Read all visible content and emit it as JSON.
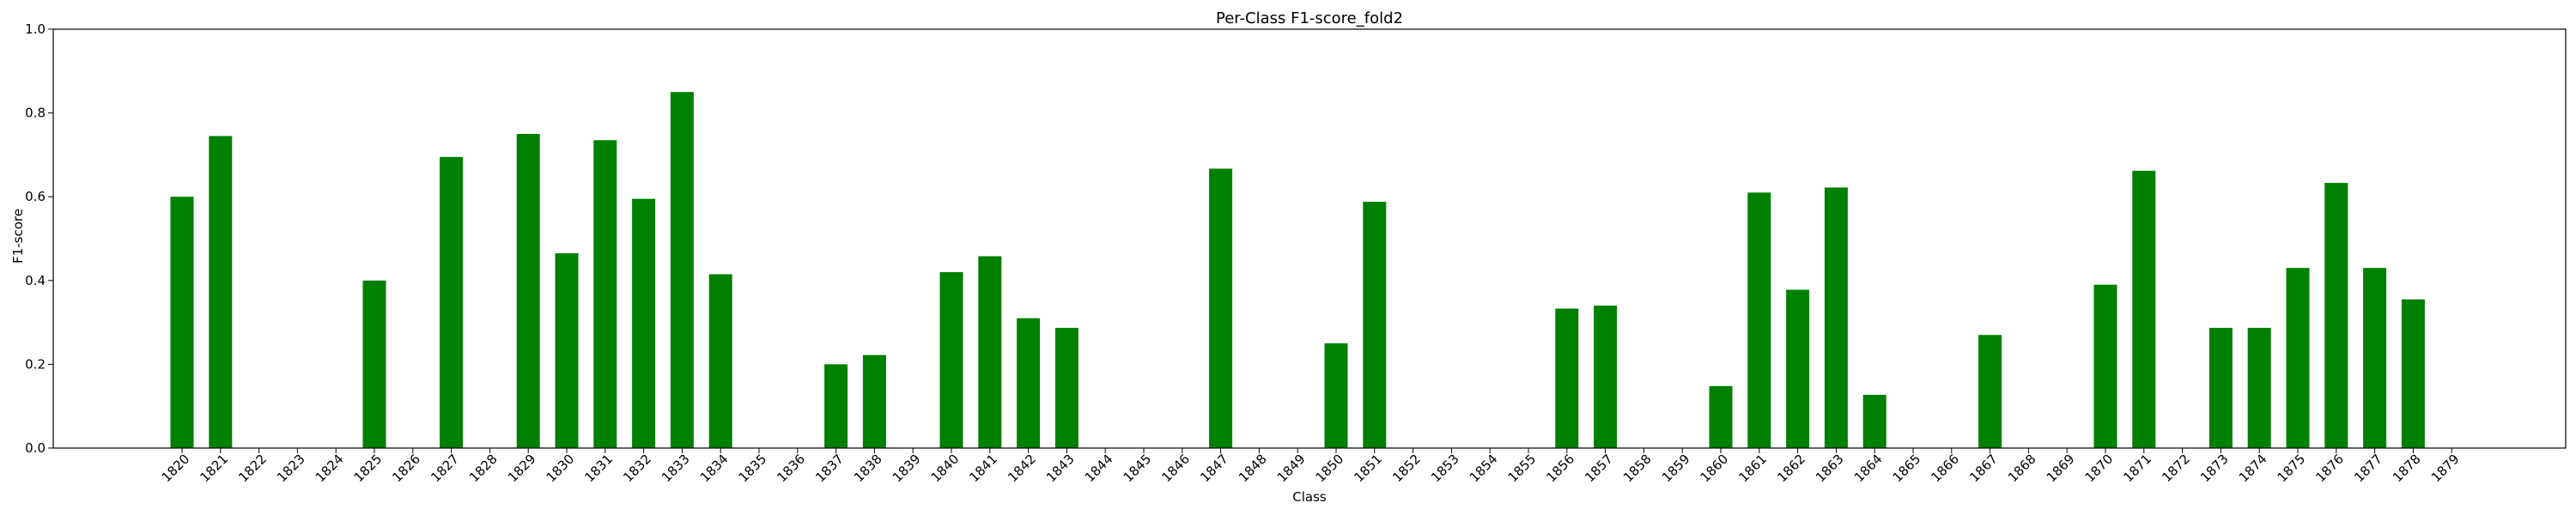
{
  "chart_data": {
    "type": "bar",
    "title": "Per-Class F1-score_fold2",
    "xlabel": "Class",
    "ylabel": "F1-score",
    "ylim": [
      0,
      1.0
    ],
    "yticks": [
      "0.0",
      "0.2",
      "0.4",
      "0.6",
      "0.8",
      "1.0"
    ],
    "grid": false,
    "bar_color": "#008000",
    "categories": [
      "1820",
      "1821",
      "1822",
      "1823",
      "1824",
      "1825",
      "1826",
      "1827",
      "1828",
      "1829",
      "1830",
      "1831",
      "1832",
      "1833",
      "1834",
      "1835",
      "1836",
      "1837",
      "1838",
      "1839",
      "1840",
      "1841",
      "1842",
      "1843",
      "1844",
      "1845",
      "1846",
      "1847",
      "1848",
      "1849",
      "1850",
      "1851",
      "1852",
      "1853",
      "1854",
      "1855",
      "1856",
      "1857",
      "1858",
      "1859",
      "1860",
      "1861",
      "1862",
      "1863",
      "1864",
      "1865",
      "1866",
      "1867",
      "1868",
      "1869",
      "1870",
      "1871",
      "1872",
      "1873",
      "1874",
      "1875",
      "1876",
      "1877",
      "1878",
      "1879"
    ],
    "values": [
      0.6,
      0.745,
      0,
      0,
      0,
      0.4,
      0,
      0.695,
      0,
      0.75,
      0.465,
      0.735,
      0.595,
      0.85,
      0.415,
      0,
      0,
      0.2,
      0.222,
      0,
      0.42,
      0.458,
      0.31,
      0.287,
      0,
      0,
      0,
      0.667,
      0,
      0,
      0.25,
      0.588,
      0,
      0,
      0,
      0,
      0.333,
      0.34,
      0,
      0,
      0.148,
      0.61,
      0.378,
      0.622,
      0.127,
      0,
      0,
      0.27,
      0,
      0,
      0.39,
      0.662,
      0,
      0.287,
      0.287,
      0.43,
      0.633,
      0.43,
      0.355,
      0
    ]
  }
}
